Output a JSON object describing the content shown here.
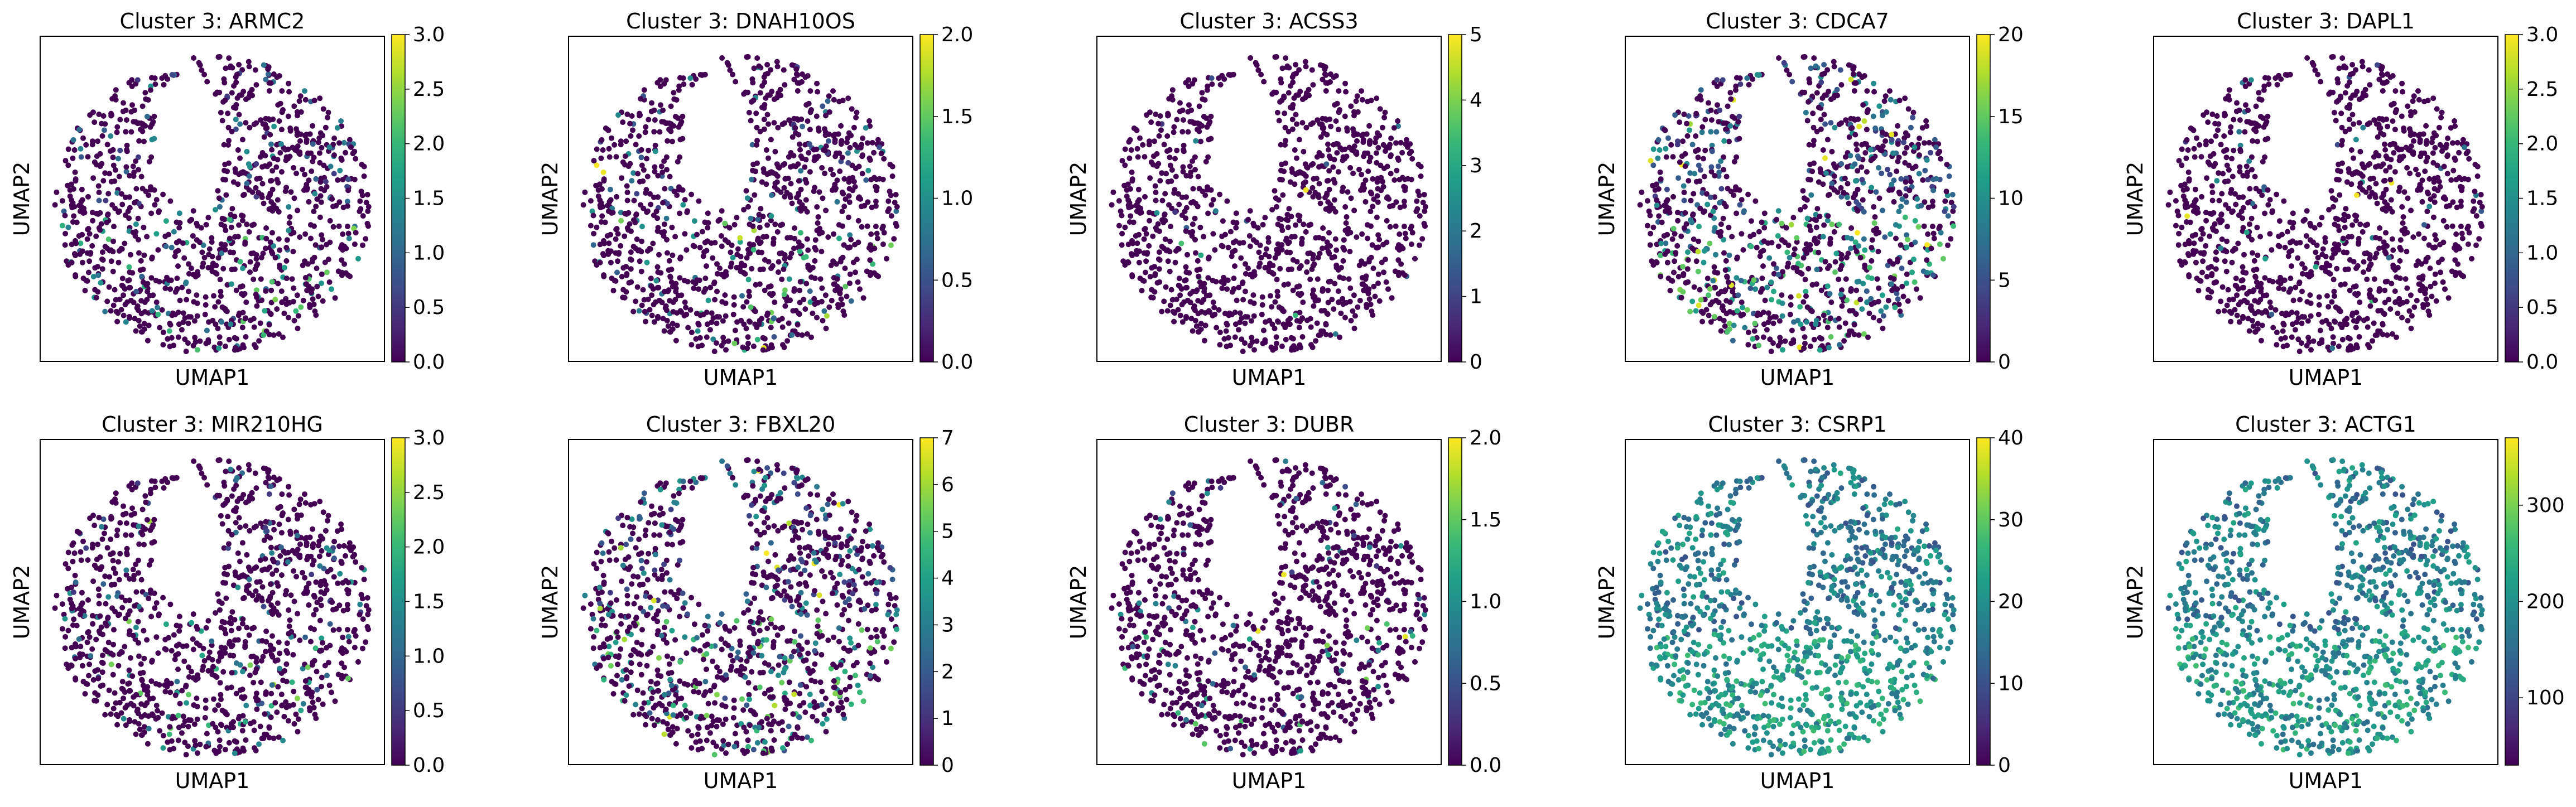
{
  "colormap": "viridis",
  "chart_data": [
    {
      "type": "scatter",
      "title": "Cluster 3: ARMC2",
      "xlabel": "UMAP1",
      "ylabel": "UMAP2",
      "colorbar": {
        "range": [
          0,
          3.0
        ],
        "ticks": [
          "0.0",
          "0.5",
          "1.0",
          "1.5",
          "2.0",
          "2.5",
          "3.0"
        ],
        "tick_values": [
          0,
          0.5,
          1,
          1.5,
          2,
          2.5,
          3
        ]
      },
      "expression_level": 0.12
    },
    {
      "type": "scatter",
      "title": "Cluster 3: DNAH10OS",
      "xlabel": "UMAP1",
      "ylabel": "UMAP2",
      "colorbar": {
        "range": [
          0,
          2.0
        ],
        "ticks": [
          "0.0",
          "0.5",
          "1.0",
          "1.5",
          "2.0"
        ],
        "tick_values": [
          0,
          0.5,
          1,
          1.5,
          2
        ]
      },
      "expression_level": 0.1
    },
    {
      "type": "scatter",
      "title": "Cluster 3: ACSS3",
      "xlabel": "UMAP1",
      "ylabel": "UMAP2",
      "colorbar": {
        "range": [
          0,
          5
        ],
        "ticks": [
          "0",
          "1",
          "2",
          "3",
          "4",
          "5"
        ],
        "tick_values": [
          0,
          1,
          2,
          3,
          4,
          5
        ]
      },
      "expression_level": 0.02
    },
    {
      "type": "scatter",
      "title": "Cluster 3: CDCA7",
      "xlabel": "UMAP1",
      "ylabel": "UMAP2",
      "colorbar": {
        "range": [
          0,
          20
        ],
        "ticks": [
          "0",
          "5",
          "10",
          "15",
          "20"
        ],
        "tick_values": [
          0,
          5,
          10,
          15,
          20
        ]
      },
      "expression_level": 0.35
    },
    {
      "type": "scatter",
      "title": "Cluster 3: DAPL1",
      "xlabel": "UMAP1",
      "ylabel": "UMAP2",
      "colorbar": {
        "range": [
          0,
          3.0
        ],
        "ticks": [
          "0.0",
          "0.5",
          "1.0",
          "1.5",
          "2.0",
          "2.5",
          "3.0"
        ],
        "tick_values": [
          0,
          0.5,
          1,
          1.5,
          2,
          2.5,
          3
        ]
      },
      "expression_level": 0.03
    },
    {
      "type": "scatter",
      "title": "Cluster 3: MIR210HG",
      "xlabel": "UMAP1",
      "ylabel": "UMAP2",
      "colorbar": {
        "range": [
          0,
          3.0
        ],
        "ticks": [
          "0.0",
          "0.5",
          "1.0",
          "1.5",
          "2.0",
          "2.5",
          "3.0"
        ],
        "tick_values": [
          0,
          0.5,
          1,
          1.5,
          2,
          2.5,
          3
        ]
      },
      "expression_level": 0.12
    },
    {
      "type": "scatter",
      "title": "Cluster 3: FBXL20",
      "xlabel": "UMAP1",
      "ylabel": "UMAP2",
      "colorbar": {
        "range": [
          0,
          7
        ],
        "ticks": [
          "0",
          "1",
          "2",
          "3",
          "4",
          "5",
          "6",
          "7"
        ],
        "tick_values": [
          0,
          1,
          2,
          3,
          4,
          5,
          6,
          7
        ]
      },
      "expression_level": 0.3
    },
    {
      "type": "scatter",
      "title": "Cluster 3: DUBR",
      "xlabel": "UMAP1",
      "ylabel": "UMAP2",
      "colorbar": {
        "range": [
          0,
          2.0
        ],
        "ticks": [
          "0.0",
          "0.5",
          "1.0",
          "1.5",
          "2.0"
        ],
        "tick_values": [
          0,
          0.5,
          1,
          1.5,
          2
        ]
      },
      "expression_level": 0.08
    },
    {
      "type": "scatter",
      "title": "Cluster 3: CSRP1",
      "xlabel": "UMAP1",
      "ylabel": "UMAP2",
      "colorbar": {
        "range": [
          0,
          40
        ],
        "ticks": [
          "0",
          "10",
          "20",
          "30",
          "40"
        ],
        "tick_values": [
          0,
          10,
          20,
          30,
          40
        ]
      },
      "expression_level": 0.6
    },
    {
      "type": "scatter",
      "title": "Cluster 3: ACTG1",
      "xlabel": "UMAP1",
      "ylabel": "UMAP2",
      "colorbar": {
        "range": [
          30,
          370
        ],
        "ticks": [
          "100",
          "200",
          "300"
        ],
        "tick_values": [
          100,
          200,
          300
        ]
      },
      "expression_level": 0.55
    }
  ]
}
